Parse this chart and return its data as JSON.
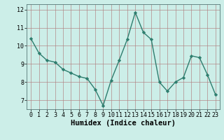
{
  "x": [
    0,
    1,
    2,
    3,
    4,
    5,
    6,
    7,
    8,
    9,
    10,
    11,
    12,
    13,
    14,
    15,
    16,
    17,
    18,
    19,
    20,
    21,
    22,
    23
  ],
  "y": [
    10.4,
    9.6,
    9.2,
    9.1,
    8.7,
    8.5,
    8.3,
    8.2,
    7.6,
    6.7,
    8.1,
    9.2,
    10.35,
    11.85,
    10.75,
    10.35,
    8.0,
    7.5,
    8.0,
    8.25,
    9.45,
    9.35,
    8.4,
    7.3
  ],
  "line_color": "#2e7d6e",
  "marker": "D",
  "marker_size": 2.2,
  "bg_color": "#cceee8",
  "grid_color": "#b08080",
  "xlabel": "Humidex (Indice chaleur)",
  "xlabel_fontsize": 7.5,
  "ylim": [
    6.5,
    12.3
  ],
  "xlim": [
    -0.5,
    23.5
  ],
  "yticks": [
    7,
    8,
    9,
    10,
    11,
    12
  ],
  "xticks": [
    0,
    1,
    2,
    3,
    4,
    5,
    6,
    7,
    8,
    9,
    10,
    11,
    12,
    13,
    14,
    15,
    16,
    17,
    18,
    19,
    20,
    21,
    22,
    23
  ],
  "tick_fontsize": 6.0,
  "xlabel_fontsize_bold": true,
  "linewidth": 1.0
}
